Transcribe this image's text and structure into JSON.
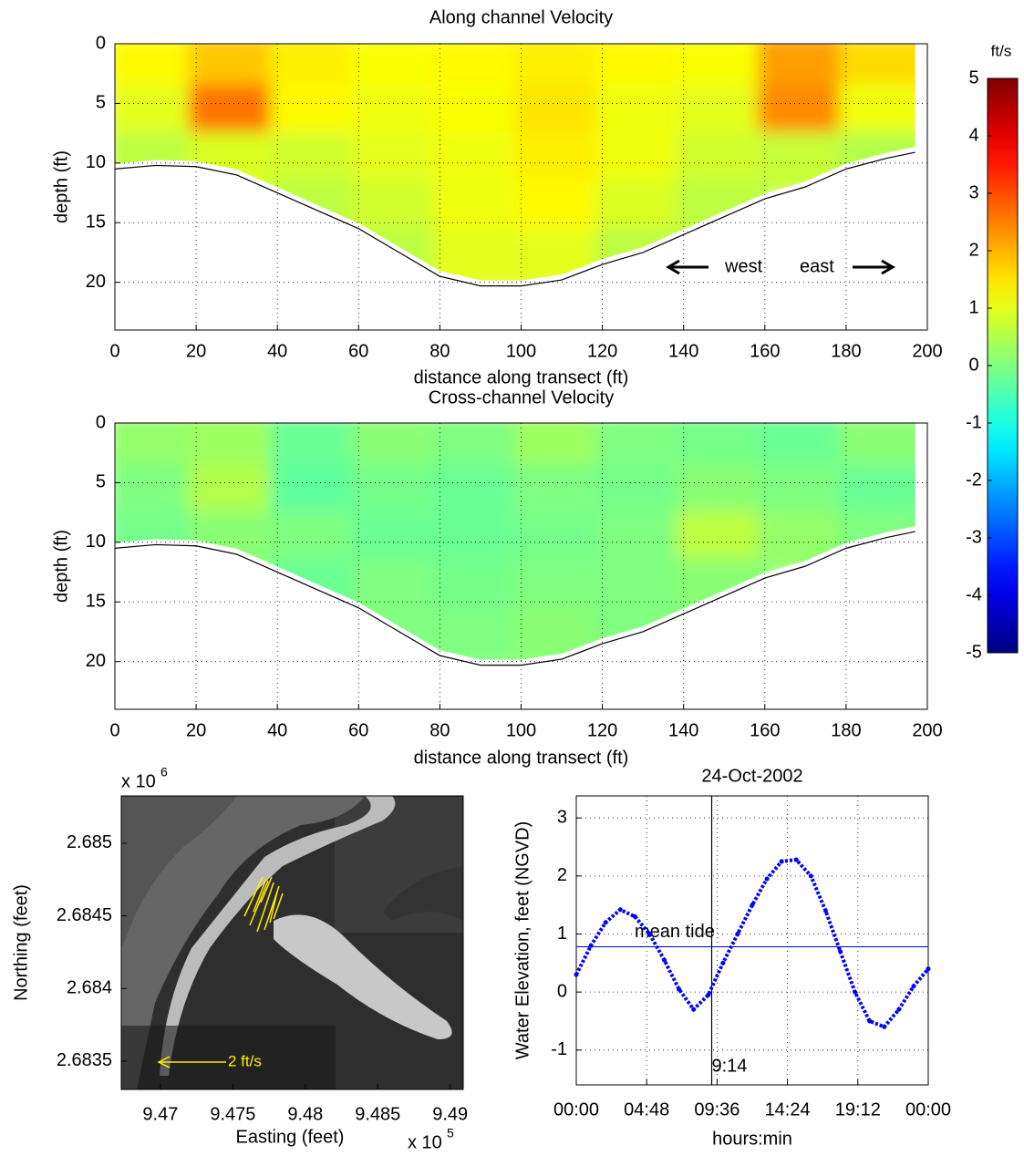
{
  "chart_data": [
    {
      "type": "contour",
      "title": "Along channel Velocity",
      "xlabel": "distance along transect (ft)",
      "ylabel": "depth (ft)",
      "x_edges": [
        0,
        20,
        40,
        60,
        80,
        100,
        120,
        140,
        160,
        180,
        200
      ],
      "depth_edges": [
        0,
        4,
        8,
        12,
        16,
        20
      ],
      "values": [
        [
          1.3,
          1.8,
          1.4,
          1.2,
          1.3,
          1.4,
          1.3,
          1.2,
          2.2,
          1.6
        ],
        [
          1.0,
          2.6,
          1.3,
          1.1,
          1.2,
          1.5,
          1.1,
          1.0,
          2.4,
          1.1
        ],
        [
          0.6,
          0.9,
          0.8,
          1.0,
          1.1,
          1.4,
          1.1,
          0.8,
          0.7,
          0.5
        ],
        [
          null,
          null,
          0.6,
          0.8,
          1.1,
          1.3,
          0.9,
          0.6,
          null,
          null
        ],
        [
          null,
          null,
          null,
          0.6,
          1.0,
          1.0,
          0.6,
          null,
          null,
          null
        ]
      ],
      "bottom": {
        "x": [
          0,
          10,
          20,
          30,
          40,
          50,
          60,
          70,
          80,
          90,
          100,
          110,
          120,
          130,
          140,
          150,
          160,
          170,
          180,
          190,
          197
        ],
        "depth": [
          10.5,
          10.2,
          10.3,
          11,
          12.5,
          14,
          15.5,
          17.5,
          19.5,
          20.3,
          20.3,
          19.8,
          18.5,
          17.5,
          16,
          14.5,
          13,
          12,
          10.5,
          9.6,
          9.1
        ]
      },
      "xlim": [
        0,
        200
      ],
      "ylim": [
        0,
        24
      ],
      "y_reversed": true,
      "xticks": [
        0,
        20,
        40,
        60,
        80,
        100,
        120,
        140,
        160,
        180,
        200
      ],
      "yticks": [
        0,
        5,
        10,
        15,
        20
      ],
      "grid": true,
      "annotations": [
        "west",
        "east"
      ]
    },
    {
      "type": "contour",
      "title": "Cross-channel Velocity",
      "xlabel": "distance along transect (ft)",
      "ylabel": "depth (ft)",
      "x_edges": [
        0,
        20,
        40,
        60,
        80,
        100,
        120,
        140,
        160,
        180,
        200
      ],
      "depth_edges": [
        0,
        4,
        8,
        12,
        16,
        20
      ],
      "values": [
        [
          0.2,
          0.3,
          -0.2,
          0.1,
          0,
          0.3,
          0,
          -0.1,
          -0.2,
          0.1
        ],
        [
          0,
          0.5,
          -0.3,
          -0.1,
          -0.2,
          0,
          -0.1,
          0.1,
          0,
          -0.2
        ],
        [
          -0.1,
          0.1,
          0,
          -0.2,
          -0.2,
          -0.1,
          0,
          0.6,
          0.2,
          0
        ],
        [
          null,
          null,
          -0.2,
          0,
          -0.1,
          0,
          0,
          0.1,
          null,
          null
        ],
        [
          null,
          null,
          null,
          0,
          0,
          0.1,
          0,
          null,
          null,
          null
        ]
      ],
      "bottom": {
        "x": [
          0,
          10,
          20,
          30,
          40,
          50,
          60,
          70,
          80,
          90,
          100,
          110,
          120,
          130,
          140,
          150,
          160,
          170,
          180,
          190,
          197
        ],
        "depth": [
          10.5,
          10.2,
          10.3,
          11,
          12.5,
          14,
          15.5,
          17.5,
          19.5,
          20.3,
          20.3,
          19.8,
          18.5,
          17.5,
          16,
          14.5,
          13,
          12,
          10.5,
          9.6,
          9.1
        ]
      },
      "xlim": [
        0,
        200
      ],
      "ylim": [
        0,
        24
      ],
      "y_reversed": true,
      "xticks": [
        0,
        20,
        40,
        60,
        80,
        100,
        120,
        140,
        160,
        180,
        200
      ],
      "yticks": [
        0,
        5,
        10,
        15,
        20
      ],
      "grid": true
    },
    {
      "type": "colorbar",
      "label": "ft/s",
      "colormap": "jet",
      "clim": [
        -5,
        5
      ],
      "ticks": [
        -5,
        -4,
        -3,
        -2,
        -1,
        0,
        1,
        2,
        3,
        4,
        5
      ]
    },
    {
      "type": "map",
      "xlabel": "Easting (feet)",
      "ylabel": "Northing (feet)",
      "xlim": [
        946730,
        949090
      ],
      "ylim": [
        2683305,
        2685326
      ],
      "xticks": [
        {
          "value": 947000,
          "label": "9.47"
        },
        {
          "value": 947500,
          "label": "9.475"
        },
        {
          "value": 948000,
          "label": "9.48"
        },
        {
          "value": 948500,
          "label": "9.485"
        },
        {
          "value": 949000,
          "label": "9.49"
        }
      ],
      "yticks": [
        {
          "value": 2683500,
          "label": "2.6835"
        },
        {
          "value": 2684000,
          "label": "2.684"
        },
        {
          "value": 2684500,
          "label": "2.6845"
        },
        {
          "value": 2685000,
          "label": "2.685"
        }
      ],
      "x_multiplier": {
        "base": "x 10",
        "exponent": "5"
      },
      "y_multiplier": {
        "base": "x 10",
        "exponent": "6"
      },
      "annotation": "2 ft/s"
    },
    {
      "type": "line",
      "title": "24-Oct-2002",
      "xlabel": "hours:min",
      "ylabel": "Water Elevation, feet (NGVD)",
      "x": [
        0,
        1,
        2,
        3,
        4,
        5,
        6,
        7,
        8,
        9,
        10,
        11,
        12,
        13,
        14,
        15,
        16,
        17,
        18,
        19,
        20,
        21,
        22,
        23,
        24
      ],
      "series": [
        {
          "color": "#0000ff",
          "values": [
            0.3,
            0.8,
            1.2,
            1.42,
            1.3,
            1.0,
            0.55,
            0.05,
            -0.3,
            -0.05,
            0.5,
            1.0,
            1.5,
            1.95,
            2.25,
            2.28,
            2.0,
            1.4,
            0.7,
            0.0,
            -0.5,
            -0.6,
            -0.3,
            0.1,
            0.4
          ]
        }
      ],
      "mean_tide": {
        "value": 0.78,
        "label": "mean tide"
      },
      "marker_time": {
        "value": 9.2333,
        "label": "9:14"
      },
      "xlim": [
        0,
        24
      ],
      "ylim": [
        -1.6,
        3.38
      ],
      "xticks": [
        {
          "value": 0,
          "label": "00:00"
        },
        {
          "value": 4.8,
          "label": "04:48"
        },
        {
          "value": 9.6,
          "label": "09:36"
        },
        {
          "value": 14.4,
          "label": "14:24"
        },
        {
          "value": 19.2,
          "label": "19:12"
        },
        {
          "value": 24,
          "label": "00:00"
        }
      ],
      "yticks": [
        -1,
        0,
        1,
        2,
        3
      ],
      "grid": true
    }
  ]
}
